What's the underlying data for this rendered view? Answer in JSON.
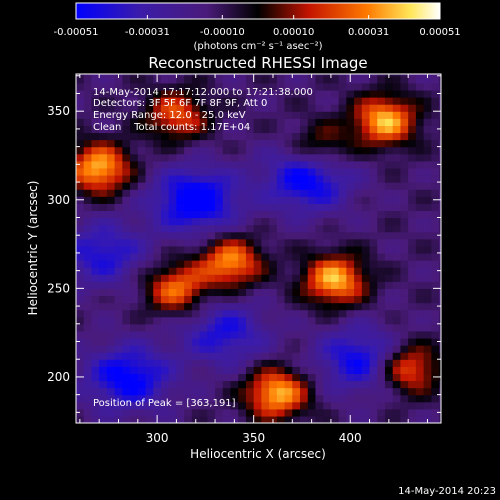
{
  "chart_data": {
    "type": "heatmap",
    "title": "Reconstructed RHESSI Image",
    "xlabel": "Heliocentric X (arcsec)",
    "ylabel": "Heliocentric Y (arcsec)",
    "xlim": [
      258,
      447
    ],
    "ylim": [
      174,
      371
    ],
    "xticks": [
      300,
      350,
      400
    ],
    "yticks": [
      200,
      250,
      300,
      350
    ],
    "grid": false,
    "colorbar": {
      "ticks": [
        "-0.00051",
        "-0.00031",
        "-0.00010",
        "0.00010",
        "0.00031",
        "0.00051"
      ],
      "range": [
        -0.00051,
        0.00051
      ],
      "unit_label": "(photons cm⁻² s⁻¹ asec⁻²)",
      "colors": [
        "#0000ff",
        "#3c1ca8",
        "#4a1b7a",
        "#000000",
        "#c41400",
        "#ff7a00",
        "#ffe75a",
        "#ffffff"
      ]
    },
    "annotations": [
      "14-May-2014 17:17:12.000 to 17:21:38.000",
      "Detectors: 3F 5F 6F 7F 8F 9F, Att 0",
      "Energy Range: 12.0 - 25.0 keV",
      "Clean    Total counts: 1.17E+04"
    ],
    "peak_label": "Position of Peak = [363,191]",
    "bright_sources": [
      {
        "x": 270,
        "y": 318,
        "peak": 1.0
      },
      {
        "x": 310,
        "y": 250,
        "peak": 0.8
      },
      {
        "x": 338,
        "y": 265,
        "peak": 0.9
      },
      {
        "x": 392,
        "y": 255,
        "peak": 1.0
      },
      {
        "x": 418,
        "y": 345,
        "peak": 1.0
      },
      {
        "x": 310,
        "y": 348,
        "peak": 0.7
      },
      {
        "x": 362,
        "y": 191,
        "peak": 1.0
      },
      {
        "x": 430,
        "y": 205,
        "peak": 0.8
      },
      {
        "x": 385,
        "y": 330,
        "peak": 0.5
      }
    ],
    "negative_regions": [
      {
        "x": 320,
        "y": 300,
        "depth": 0.9
      },
      {
        "x": 378,
        "y": 312,
        "depth": 0.8
      },
      {
        "x": 285,
        "y": 200,
        "depth": 0.8
      },
      {
        "x": 405,
        "y": 210,
        "depth": 0.7
      },
      {
        "x": 272,
        "y": 270,
        "depth": 0.6
      },
      {
        "x": 335,
        "y": 225,
        "depth": 0.6
      }
    ]
  },
  "footer_date": "14-May-2014 20:23"
}
